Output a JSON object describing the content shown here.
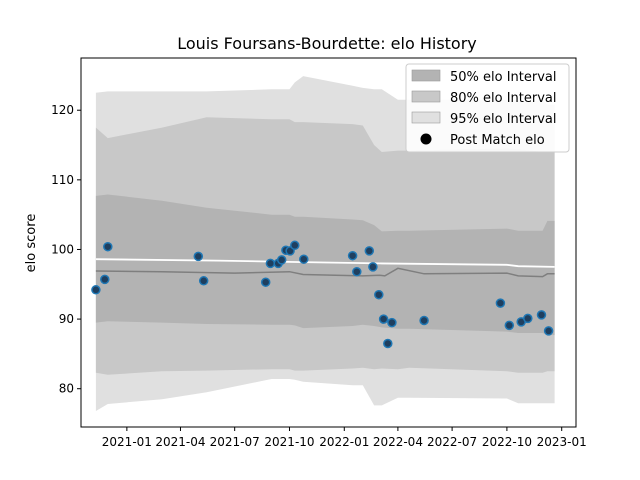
{
  "chart_data": {
    "type": "line",
    "title": "Louis Foursans-Bourdette: elo History",
    "xlabel": "",
    "ylabel": "elo score",
    "x_range": [
      "2020-10-16",
      "2023-01-25"
    ],
    "ylim": [
      74.5,
      127.5
    ],
    "x_ticks": [
      {
        "label": "2021-01",
        "date": "2021-01-01"
      },
      {
        "label": "2021-04",
        "date": "2021-04-01"
      },
      {
        "label": "2021-07",
        "date": "2021-07-01"
      },
      {
        "label": "2021-10",
        "date": "2021-10-01"
      },
      {
        "label": "2022-01",
        "date": "2022-01-01"
      },
      {
        "label": "2022-04",
        "date": "2022-04-01"
      },
      {
        "label": "2022-07",
        "date": "2022-07-01"
      },
      {
        "label": "2022-10",
        "date": "2022-10-01"
      },
      {
        "label": "2023-01",
        "date": "2023-01-01"
      }
    ],
    "y_ticks": [
      80,
      90,
      100,
      110,
      120
    ],
    "grid": false,
    "legend": {
      "placement": "upper right",
      "entries": [
        {
          "label": "50% elo Interval",
          "color": "#b3b3b3",
          "kind": "patch"
        },
        {
          "label": "80% elo Interval",
          "color": "#c8c8c8",
          "kind": "patch"
        },
        {
          "label": "95% elo Interval",
          "color": "#e0e0e0",
          "kind": "patch"
        },
        {
          "label": "Post Match elo",
          "color": "#000000",
          "kind": "marker"
        }
      ]
    },
    "colors": {
      "band50": "#b3b3b3",
      "band80": "#c8c8c8",
      "band95": "#e0e0e0",
      "mean_line": "#ffffff",
      "median_line": "#7f7f7f",
      "point_fill": "#1f3f5f",
      "point_edge": "#1f77b4"
    },
    "bands": {
      "dates": [
        "2020-11-10",
        "2020-11-30",
        "2021-03-01",
        "2021-05-15",
        "2021-09-01",
        "2021-10-01",
        "2021-10-10",
        "2021-10-24",
        "2022-01-15",
        "2022-02-01",
        "2022-02-20",
        "2022-03-05",
        "2022-04-01",
        "2022-04-20",
        "2022-10-01",
        "2022-10-20",
        "2022-11-30",
        "2022-12-08",
        "2022-12-20"
      ],
      "q95_hi": [
        122.5,
        122.7,
        122.7,
        122.7,
        123.0,
        123.0,
        124.0,
        124.9,
        123.5,
        123.2,
        123.0,
        123.0,
        121.5,
        121.5,
        121.5,
        121.4,
        121.4,
        120.8,
        120.8
      ],
      "q80_hi": [
        117.5,
        116.0,
        117.5,
        119.0,
        118.7,
        118.7,
        118.3,
        118.3,
        118.0,
        117.8,
        115.0,
        114.0,
        114.2,
        114.2,
        114.5,
        114.4,
        114.0,
        114.0,
        114.0
      ],
      "q50_hi": [
        107.7,
        107.9,
        107.0,
        106.0,
        105.0,
        105.0,
        104.7,
        104.7,
        104.3,
        104.2,
        103.5,
        102.6,
        102.7,
        102.7,
        103.0,
        102.7,
        102.7,
        104.1,
        104.1
      ],
      "q50_lo": [
        89.5,
        89.7,
        89.5,
        89.3,
        89.2,
        89.2,
        89.1,
        88.7,
        89.0,
        89.2,
        89.0,
        88.8,
        88.6,
        88.6,
        88.2,
        88.0,
        88.0,
        87.7,
        87.7
      ],
      "q80_lo": [
        82.3,
        82.0,
        82.5,
        82.6,
        82.8,
        82.8,
        82.6,
        82.6,
        82.9,
        83.0,
        82.8,
        82.9,
        82.8,
        83.0,
        82.5,
        82.3,
        82.3,
        82.5,
        82.5
      ],
      "q95_lo": [
        76.8,
        77.8,
        78.5,
        79.5,
        81.4,
        81.4,
        81.3,
        81.0,
        80.5,
        80.5,
        77.6,
        77.6,
        78.7,
        78.7,
        78.6,
        77.9,
        77.9,
        77.9,
        77.9
      ]
    },
    "mean_line": {
      "dates": [
        "2020-11-10",
        "2021-06-01",
        "2021-10-10",
        "2022-03-01",
        "2022-10-01",
        "2022-10-20",
        "2022-12-20"
      ],
      "values": [
        98.6,
        98.4,
        98.2,
        98.0,
        97.8,
        97.6,
        97.5
      ]
    },
    "median_line": {
      "dates": [
        "2020-11-10",
        "2021-03-01",
        "2021-07-01",
        "2021-10-01",
        "2021-10-24",
        "2022-02-01",
        "2022-03-01",
        "2022-03-10",
        "2022-04-01",
        "2022-05-15",
        "2022-10-01",
        "2022-10-20",
        "2022-11-30",
        "2022-12-08",
        "2022-12-20"
      ],
      "values": [
        96.9,
        96.8,
        96.6,
        96.8,
        96.4,
        96.2,
        96.3,
        96.2,
        97.3,
        96.5,
        96.6,
        96.2,
        96.1,
        96.5,
        96.5
      ]
    },
    "points": [
      {
        "date": "2020-11-10",
        "elo": 94.2
      },
      {
        "date": "2020-11-25",
        "elo": 95.7
      },
      {
        "date": "2020-11-30",
        "elo": 100.4
      },
      {
        "date": "2021-05-01",
        "elo": 99.0
      },
      {
        "date": "2021-05-10",
        "elo": 95.5
      },
      {
        "date": "2021-08-22",
        "elo": 95.3
      },
      {
        "date": "2021-08-30",
        "elo": 98.0
      },
      {
        "date": "2021-09-12",
        "elo": 98.0
      },
      {
        "date": "2021-09-18",
        "elo": 98.5
      },
      {
        "date": "2021-09-25",
        "elo": 99.9
      },
      {
        "date": "2021-10-02",
        "elo": 99.8
      },
      {
        "date": "2021-10-10",
        "elo": 100.6
      },
      {
        "date": "2021-10-25",
        "elo": 98.6
      },
      {
        "date": "2022-01-15",
        "elo": 99.1
      },
      {
        "date": "2022-01-22",
        "elo": 96.8
      },
      {
        "date": "2022-02-12",
        "elo": 99.8
      },
      {
        "date": "2022-02-18",
        "elo": 97.5
      },
      {
        "date": "2022-02-28",
        "elo": 93.5
      },
      {
        "date": "2022-03-08",
        "elo": 90.0
      },
      {
        "date": "2022-03-15",
        "elo": 86.5
      },
      {
        "date": "2022-03-22",
        "elo": 89.5
      },
      {
        "date": "2022-05-15",
        "elo": 89.8
      },
      {
        "date": "2022-09-20",
        "elo": 92.3
      },
      {
        "date": "2022-10-05",
        "elo": 89.1
      },
      {
        "date": "2022-10-25",
        "elo": 89.6
      },
      {
        "date": "2022-11-05",
        "elo": 90.1
      },
      {
        "date": "2022-11-28",
        "elo": 90.6
      },
      {
        "date": "2022-12-10",
        "elo": 88.3
      }
    ]
  }
}
